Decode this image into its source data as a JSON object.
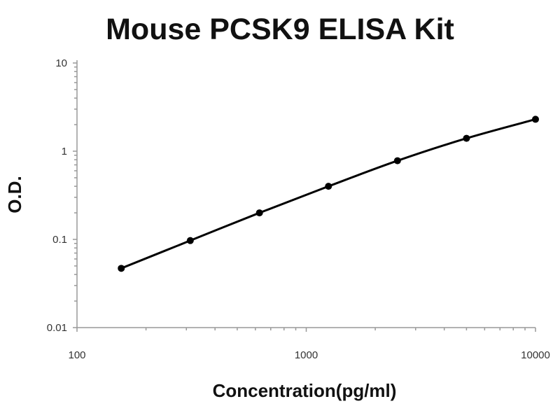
{
  "chart_data": {
    "type": "line",
    "title": "Mouse PCSK9 ELISA Kit",
    "xlabel": "Concentration(pg/ml)",
    "ylabel": "O.D.",
    "xscale": "log",
    "yscale": "log",
    "xlim": [
      100,
      10000
    ],
    "ylim": [
      0.01,
      10
    ],
    "x_ticks": [
      "100",
      "1000",
      "10000"
    ],
    "y_ticks": [
      "0.01",
      "0.1",
      "1",
      "10"
    ],
    "grid": false,
    "legend": "none",
    "line_color": "#000000",
    "series": [
      {
        "x": [
          156,
          312,
          625,
          1250,
          2500,
          5000,
          10000
        ],
        "values": [
          0.047,
          0.097,
          0.2,
          0.4,
          0.78,
          1.4,
          2.3
        ]
      }
    ]
  }
}
